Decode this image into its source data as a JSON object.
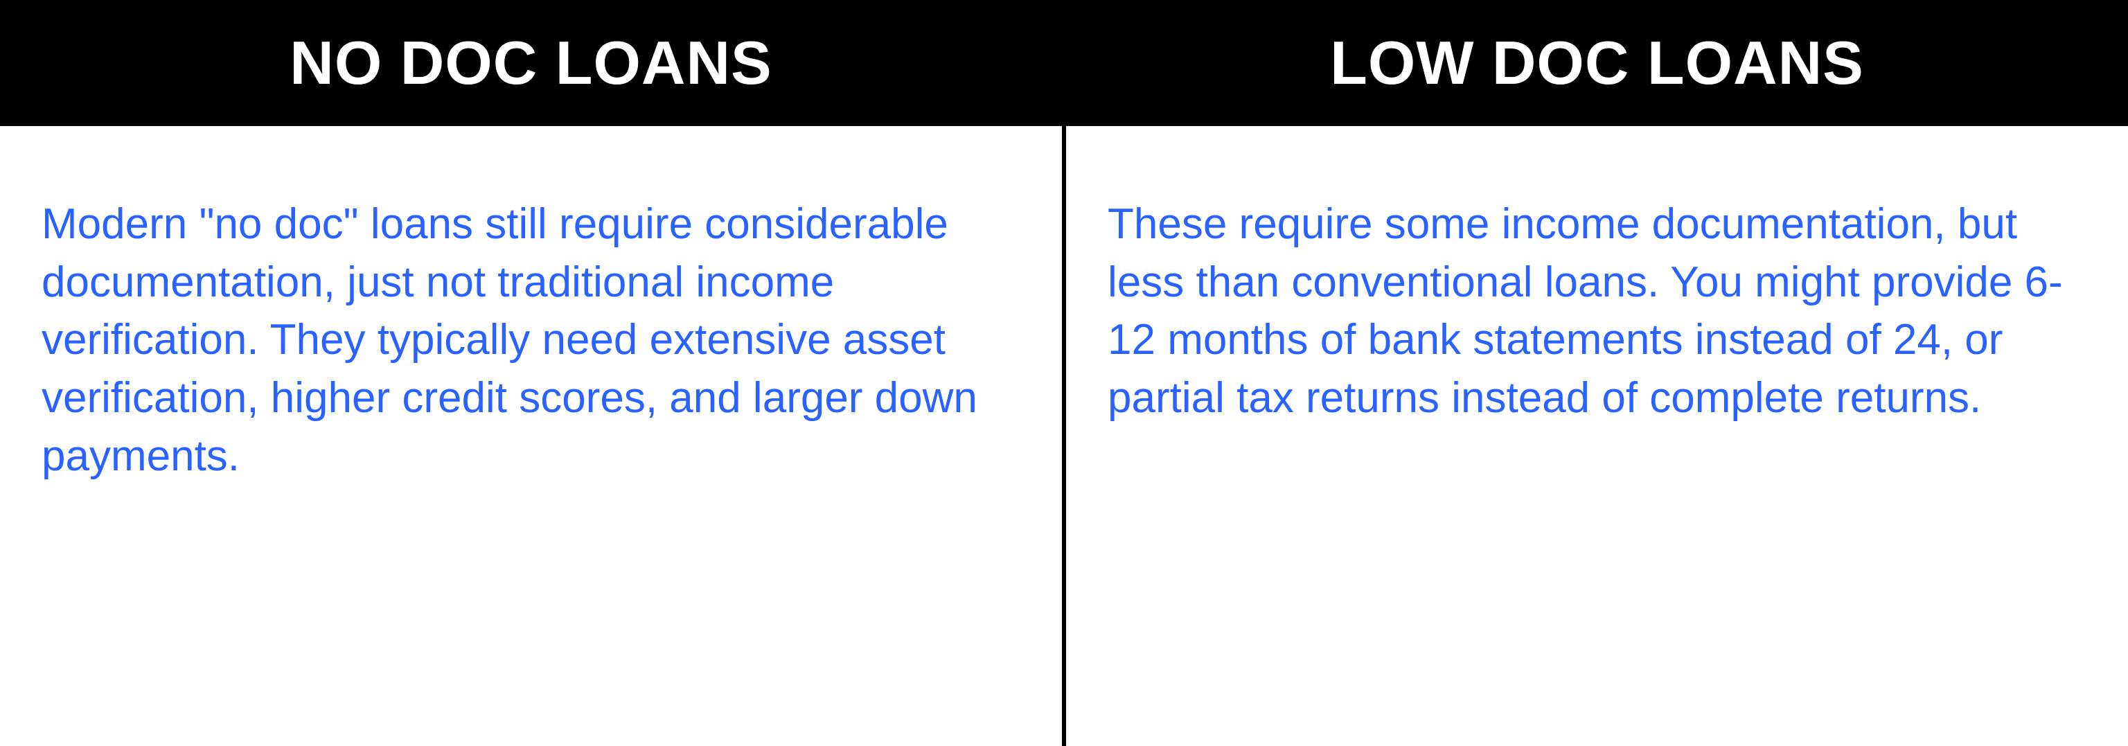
{
  "columns": [
    {
      "header": "NO DOC LOANS",
      "body": "Modern \"no doc\" loans still require considerable documentation, just not traditional income verification. They typically need extensive asset verification, higher credit scores, and larger down payments."
    },
    {
      "header": "LOW DOC LOANS",
      "body": "These require some income documentation, but less than conventional loans. You might provide 6-12 months of bank statements instead of 24, or partial tax returns instead of complete returns."
    }
  ],
  "colors": {
    "header_background": "#000000",
    "header_text": "#ffffff",
    "body_text": "#2962ff",
    "page_background": "#ffffff",
    "divider": "#000000"
  },
  "typography": {
    "header_fontsize": 88,
    "header_weight": 800,
    "body_fontsize": 62,
    "body_weight": 400
  }
}
